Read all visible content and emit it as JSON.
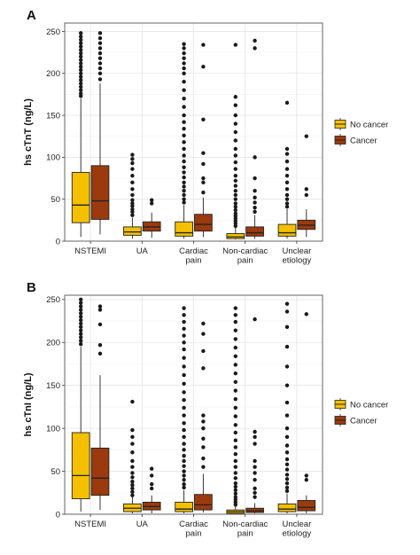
{
  "colors": {
    "no_cancer": "#f4c000",
    "cancer": "#9b3a0d",
    "outlier": "#1a1a1a",
    "grid": "#e4e4e4",
    "border": "#555555"
  },
  "chart_data": [
    {
      "type": "box",
      "panel_label": "A",
      "ylabel": "hs  cTnT  (ng/L)",
      "ylim": [
        0,
        260
      ],
      "yticks": [
        0,
        50,
        100,
        150,
        200,
        250
      ],
      "grid": true,
      "legend_position": "right",
      "categories": [
        {
          "label": [
            "NSTEMI"
          ]
        },
        {
          "label": [
            "UA"
          ]
        },
        {
          "label": [
            "Cardiac",
            "pain"
          ]
        },
        {
          "label": [
            "Non-cardiac",
            "pain"
          ]
        },
        {
          "label": [
            "Unclear",
            "etiology"
          ]
        }
      ],
      "series": [
        {
          "name": "No cancer",
          "color": "#f4c000",
          "boxes": [
            {
              "min": 5,
              "q1": 22,
              "median": 43,
              "q3": 82,
              "max": 170,
              "outliers": [
                173,
                176,
                180,
                184,
                188,
                192,
                196,
                200,
                204,
                208,
                212,
                216,
                220,
                224,
                228,
                232,
                236,
                240,
                244,
                248
              ]
            },
            {
              "min": 3,
              "q1": 7,
              "median": 11,
              "q3": 17,
              "max": 28,
              "outliers": [
                31,
                35,
                38,
                42,
                45,
                49,
                55,
                62,
                70,
                78,
                86,
                93,
                98,
                103
              ]
            },
            {
              "min": 3,
              "q1": 6,
              "median": 10,
              "q3": 23,
              "max": 43,
              "outliers": [
                46,
                50,
                55,
                60,
                65,
                70,
                76,
                82,
                88,
                95,
                102,
                110,
                118,
                126,
                134,
                142,
                150,
                160,
                170,
                180,
                190,
                200,
                206,
                212,
                218,
                224,
                230,
                235
              ]
            },
            {
              "min": 2,
              "q1": 3,
              "median": 5,
              "q3": 9,
              "max": 16,
              "outliers": [
                18,
                21,
                24,
                27,
                30,
                33,
                37,
                41,
                45,
                50,
                55,
                60,
                66,
                72,
                78,
                86,
                94,
                102,
                110,
                120,
                130,
                140,
                150,
                162,
                172,
                234
              ]
            },
            {
              "min": 3,
              "q1": 6,
              "median": 10,
              "q3": 20,
              "max": 38,
              "outliers": [
                41,
                45,
                50,
                55,
                62,
                70,
                78,
                86,
                95,
                104,
                110,
                165
              ]
            }
          ]
        },
        {
          "name": "Cancer",
          "color": "#9b3a0d",
          "boxes": [
            {
              "min": 8,
              "q1": 26,
              "median": 48,
              "q3": 90,
              "max": 188,
              "outliers": [
                193,
                200,
                206,
                212,
                218,
                224,
                230,
                236,
                242,
                248
              ]
            },
            {
              "min": 4,
              "q1": 12,
              "median": 17,
              "q3": 23,
              "max": 34,
              "outliers": [
                45,
                49
              ]
            },
            {
              "min": 5,
              "q1": 12,
              "median": 20,
              "q3": 32,
              "max": 52,
              "outliers": [
                58,
                70,
                75,
                92,
                105,
                145,
                208,
                234
              ]
            },
            {
              "min": 3,
              "q1": 6,
              "median": 10,
              "q3": 17,
              "max": 31,
              "outliers": [
                35,
                40,
                46,
                52,
                60,
                75,
                100,
                230,
                239
              ]
            },
            {
              "min": 5,
              "q1": 14,
              "median": 19,
              "q3": 25,
              "max": 38,
              "outliers": [
                55,
                62,
                125
              ]
            }
          ]
        }
      ]
    },
    {
      "type": "box",
      "panel_label": "B",
      "ylabel": "hs  cTnI  (ng/L)",
      "ylim": [
        0,
        255
      ],
      "yticks": [
        0,
        50,
        100,
        150,
        200,
        250
      ],
      "grid": true,
      "legend_position": "right",
      "categories": [
        {
          "label": [
            "NSTEMI"
          ]
        },
        {
          "label": [
            "UA"
          ]
        },
        {
          "label": [
            "Cardiac",
            "pain"
          ]
        },
        {
          "label": [
            "Non-cardiac",
            "pain"
          ]
        },
        {
          "label": [
            "Unclear",
            "etiology"
          ]
        }
      ],
      "series": [
        {
          "name": "No cancer",
          "color": "#f4c000",
          "boxes": [
            {
              "min": 3,
              "q1": 18,
              "median": 45,
              "q3": 95,
              "max": 195,
              "outliers": [
                198,
                202,
                206,
                210,
                214,
                218,
                222,
                226,
                230,
                234,
                238,
                242,
                246,
                250
              ]
            },
            {
              "min": 1,
              "q1": 3,
              "median": 7,
              "q3": 12,
              "max": 20,
              "outliers": [
                22,
                26,
                30,
                34,
                38,
                43,
                48,
                55,
                62,
                72,
                82,
                90,
                98,
                131
              ]
            },
            {
              "min": 1,
              "q1": 3,
              "median": 6,
              "q3": 14,
              "max": 28,
              "outliers": [
                31,
                35,
                40,
                45,
                50,
                56,
                62,
                68,
                75,
                82,
                90,
                98,
                106,
                115,
                124,
                133,
                142,
                152,
                162,
                172,
                182,
                192,
                200,
                208,
                216,
                224,
                232,
                240
              ]
            },
            {
              "min": 1,
              "q1": 1,
              "median": 3,
              "q3": 5,
              "max": 9,
              "outliers": [
                11,
                14,
                17,
                20,
                24,
                28,
                32,
                36,
                42,
                48,
                55,
                62,
                70,
                78,
                86,
                95,
                104,
                114,
                124,
                134,
                144,
                154,
                164,
                174,
                184,
                194,
                204,
                214,
                224,
                232,
                240
              ]
            },
            {
              "min": 1,
              "q1": 3,
              "median": 6,
              "q3": 12,
              "max": 24,
              "outliers": [
                27,
                31,
                36,
                41,
                46,
                52,
                58,
                64,
                72,
                80,
                90,
                100,
                115,
                130,
                150,
                172,
                195,
                218,
                236,
                245
              ]
            }
          ]
        },
        {
          "name": "Cancer",
          "color": "#9b3a0d",
          "boxes": [
            {
              "min": 5,
              "q1": 22,
              "median": 42,
              "q3": 77,
              "max": 162,
              "outliers": [
                187,
                197,
                221,
                238,
                242
              ]
            },
            {
              "min": 1,
              "q1": 5,
              "median": 9,
              "q3": 14,
              "max": 22,
              "outliers": [
                30,
                35,
                45,
                53
              ]
            },
            {
              "min": 2,
              "q1": 5,
              "median": 11,
              "q3": 23,
              "max": 47,
              "outliers": [
                55,
                65,
                78,
                88,
                100,
                108,
                115,
                170,
                190,
                210,
                222
              ]
            },
            {
              "min": 1,
              "q1": 2,
              "median": 4,
              "q3": 7,
              "max": 13,
              "outliers": [
                20,
                25,
                30,
                40,
                48,
                55,
                62,
                82,
                90,
                96,
                227
              ]
            },
            {
              "min": 1,
              "q1": 4,
              "median": 8,
              "q3": 16,
              "max": 22,
              "outliers": [
                40,
                45,
                233
              ]
            }
          ]
        }
      ]
    }
  ]
}
